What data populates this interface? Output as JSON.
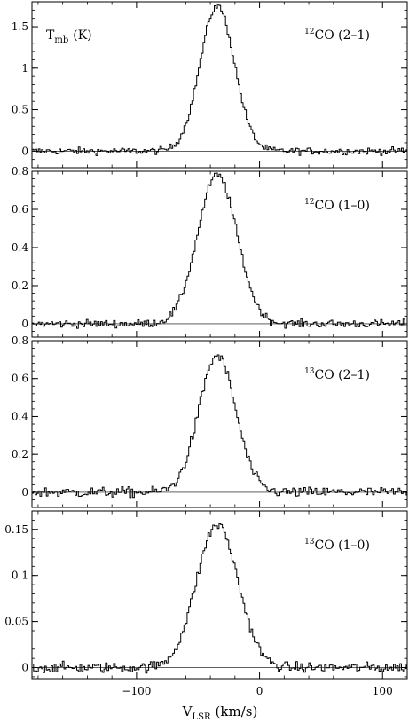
{
  "chart_data": [
    {
      "type": "line",
      "panel_label": "12CO (2–1)",
      "label_sup": "12",
      "label_main": "CO (2–1)",
      "ylabel": "T_mb (K)",
      "ylabel_main": "T",
      "ylabel_sub": "mb",
      "ylabel_unit": "(K)",
      "xlim": [
        -185,
        120
      ],
      "ylim": [
        -0.2,
        1.8
      ],
      "yticks": [
        0,
        0.5,
        1,
        1.5
      ],
      "ytick_labels": [
        "0",
        "0.5",
        "1",
        "1.5"
      ],
      "baseline": 0,
      "series": [
        {
          "profile": "gaussian",
          "peak": 1.75,
          "center": -35,
          "width": 14,
          "noise": 0.03,
          "x_range": [
            -185,
            120
          ],
          "x_step": 1.3
        }
      ]
    },
    {
      "type": "line",
      "panel_label": "12CO (1–0)",
      "label_sup": "12",
      "label_main": "CO (1–0)",
      "xlim": [
        -185,
        120
      ],
      "ylim": [
        -0.07,
        0.8
      ],
      "yticks": [
        0,
        0.2,
        0.4,
        0.6,
        0.8
      ],
      "ytick_labels": [
        "0",
        "0.2",
        "0.4",
        "0.6",
        "0.8"
      ],
      "baseline": 0,
      "series": [
        {
          "profile": "gaussian",
          "peak": 0.78,
          "center": -35,
          "width": 16,
          "noise": 0.015,
          "x_range": [
            -185,
            120
          ],
          "x_step": 1.3
        }
      ]
    },
    {
      "type": "line",
      "panel_label": "13CO (2–1)",
      "label_sup": "13",
      "label_main": "CO (2–1)",
      "xlim": [
        -185,
        120
      ],
      "ylim": [
        -0.08,
        0.8
      ],
      "yticks": [
        0,
        0.2,
        0.4,
        0.6,
        0.8
      ],
      "ytick_labels": [
        "0",
        "0.2",
        "0.4",
        "0.6",
        "0.8"
      ],
      "baseline": 0,
      "series": [
        {
          "profile": "gaussian",
          "peak": 0.72,
          "center": -35,
          "width": 15,
          "noise": 0.02,
          "x_range": [
            -185,
            120
          ],
          "x_step": 1.3
        }
      ]
    },
    {
      "type": "line",
      "panel_label": "13CO (1–0)",
      "label_sup": "13",
      "label_main": "CO (1–0)",
      "xlim": [
        -185,
        120
      ],
      "ylim": [
        -0.012,
        0.17
      ],
      "yticks": [
        0,
        0.05,
        0.1,
        0.15
      ],
      "ytick_labels": [
        "0",
        "0.05",
        "0.1",
        "0.15"
      ],
      "xticks": [
        -100,
        0,
        100
      ],
      "xtick_labels": [
        "−100",
        "0",
        "100"
      ],
      "xlabel": "V_LSR (km/s)",
      "xlabel_main": "V",
      "xlabel_sub": "LSR",
      "xlabel_unit": "(km/s)",
      "baseline": 0,
      "series": [
        {
          "profile": "gaussian",
          "peak": 0.155,
          "center": -35,
          "width": 17,
          "noise": 0.004,
          "x_range": [
            -185,
            120
          ],
          "x_step": 1.3
        }
      ]
    }
  ]
}
